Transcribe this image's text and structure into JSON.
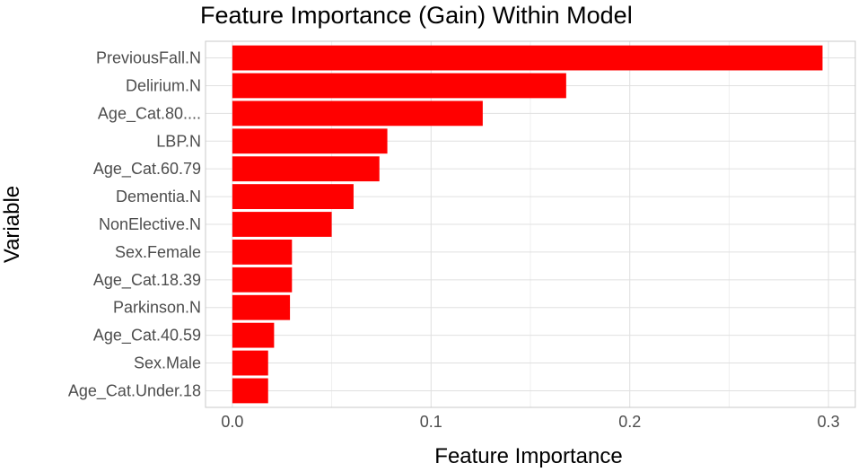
{
  "chart_data": {
    "type": "bar",
    "orientation": "horizontal",
    "title": "Feature Importance (Gain) Within Model",
    "xlabel": "Feature Importance",
    "ylabel": "Variable",
    "categories": [
      "PreviousFall.N",
      "Delirium.N",
      "Age_Cat.80....",
      "LBP.N",
      "Age_Cat.60.79",
      "Dementia.N",
      "NonElective.N",
      "Sex.Female",
      "Age_Cat.18.39",
      "Parkinson.N",
      "Age_Cat.40.59",
      "Sex.Male",
      "Age_Cat.Under.18"
    ],
    "values": [
      0.297,
      0.168,
      0.126,
      0.078,
      0.074,
      0.061,
      0.05,
      0.03,
      0.03,
      0.029,
      0.021,
      0.018,
      0.018
    ],
    "xlim": [
      -0.0135,
      0.3135
    ],
    "xticks": [
      0.0,
      0.1,
      0.2,
      0.3
    ],
    "xtick_labels": [
      "0.0",
      "0.1",
      "0.2",
      "0.3"
    ],
    "bar_color": "#ff0000",
    "grid": true
  }
}
